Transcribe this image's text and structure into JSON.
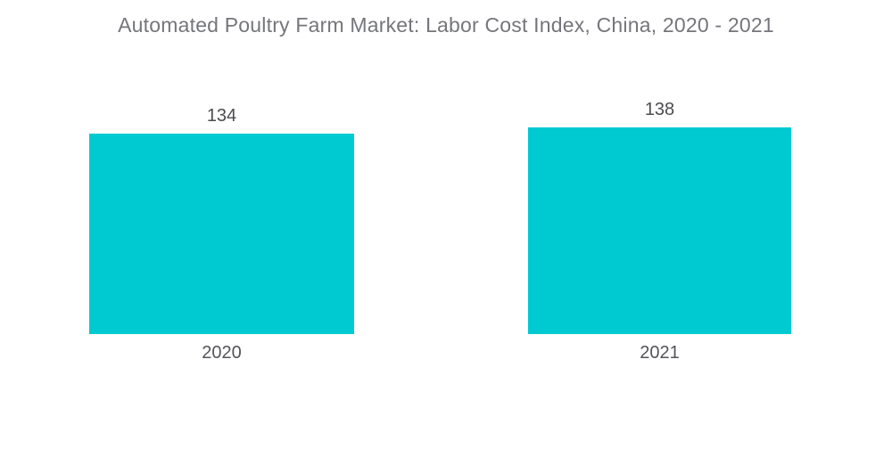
{
  "chart_data": {
    "type": "bar",
    "title": "Automated Poultry Farm Market: Labor Cost Index, China, 2020 - 2021",
    "categories": [
      "2020",
      "2021"
    ],
    "values": [
      134,
      138
    ],
    "value_labels": [
      "134",
      "138"
    ],
    "series": [
      {
        "name": "Labor Cost Index",
        "values": [
          134,
          138
        ]
      }
    ],
    "xlabel": "",
    "ylabel": "",
    "ylim": [
      0,
      160
    ],
    "grid": false,
    "legend_position": "none",
    "bar_color": "#00CAD1"
  },
  "colors": {
    "bar": "#00CAD1",
    "title_text": "#75767B",
    "value_label_text": "#4B4C4F",
    "category_label_text": "#53545A",
    "background": "#FFFFFF"
  }
}
